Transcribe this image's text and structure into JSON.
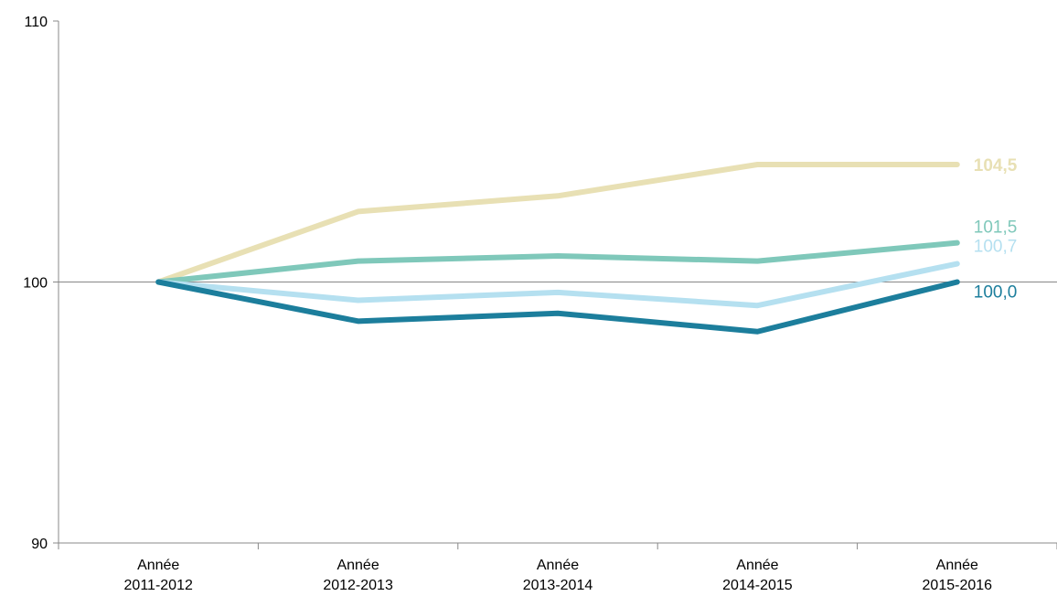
{
  "chart_data": {
    "type": "line",
    "categories": [
      [
        "Année",
        "2011-2012"
      ],
      [
        "Année",
        "2012-2013"
      ],
      [
        "Année",
        "2013-2014"
      ],
      [
        "Année",
        "2014-2015"
      ],
      [
        "Année",
        "2015-2016"
      ]
    ],
    "ylim": [
      90,
      110
    ],
    "yticks": [
      90,
      100,
      110
    ],
    "ytick_labels": [
      "90",
      "100",
      "110"
    ],
    "reference_line": 100,
    "grid": false,
    "legend": "none",
    "series": [
      {
        "color": "#e8e0b4",
        "values": [
          100,
          102.7,
          103.3,
          104.5,
          104.5
        ],
        "end_label": "104,5",
        "label_bold": true,
        "line_width": 6
      },
      {
        "color": "#7fc8ba",
        "values": [
          100,
          100.8,
          101.0,
          100.8,
          101.5
        ],
        "end_label": "101,5",
        "label_bold": false,
        "line_width": 6
      },
      {
        "color": "#b5e0f0",
        "values": [
          100,
          99.3,
          99.6,
          99.1,
          100.7
        ],
        "end_label": "100,7",
        "label_bold": false,
        "line_width": 6
      },
      {
        "color": "#1c7e9c",
        "values": [
          100,
          98.5,
          98.8,
          98.1,
          100.0
        ],
        "end_label": "100,0",
        "label_bold": false,
        "line_width": 6
      }
    ]
  }
}
